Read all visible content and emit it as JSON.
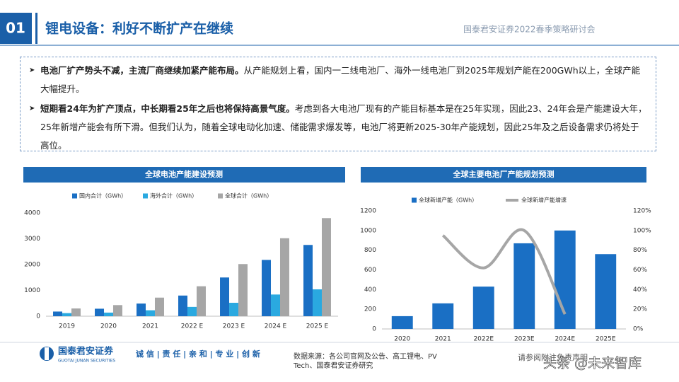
{
  "header": {
    "number": "01",
    "title": "锂电设备：利好不断扩产在继续",
    "org": "国泰君安证券2022春季策略研讨会"
  },
  "bullets": [
    {
      "bold": "电池厂扩产势头不减，主流厂商继续加紧产能布局。",
      "text": "从产能规划上看，国内一二线电池厂、海外一线电池厂到2025年规划产能在200GWh以上，全球产能大幅提升。"
    },
    {
      "bold": "短期看24年为扩产顶点，中长期看25年之后也将保持高景气度。",
      "text": "考虑到各大电池厂现有的产能目标基本是在25年实现，因此23、24年会是产能建设大年，25年新增产能会有所下滑。但我们认为，随着全球电动化加速、储能需求爆发等，电池厂将更新2025-30年产能规划，因此25年及之后设备需求仍将处于高位。"
    }
  ],
  "chart_data": [
    {
      "type": "bar",
      "title": "全球电池产能建设预测",
      "categories": [
        "2019",
        "2020",
        "2021",
        "2022 E",
        "2023 E",
        "2024 E",
        "2025 E"
      ],
      "series": [
        {
          "name": "国内合计（GWh）",
          "color": "#1a6fc4",
          "values": [
            180,
            290,
            490,
            800,
            1500,
            2180,
            2760
          ]
        },
        {
          "name": "海外合计（GWh）",
          "color": "#2aa9e0",
          "values": [
            120,
            140,
            230,
            360,
            520,
            840,
            1040
          ]
        },
        {
          "name": "全球合计（GWh）",
          "color": "#a6a6a6",
          "values": [
            300,
            430,
            720,
            1160,
            2020,
            3020,
            3800
          ]
        }
      ],
      "ylim": [
        0,
        4000
      ],
      "yticks": [
        0,
        1000,
        2000,
        3000,
        4000
      ]
    },
    {
      "type": "combo",
      "title": "全球主要电池厂产能规划预测",
      "categories": [
        "2020",
        "2021",
        "2022E",
        "2023E",
        "2024E",
        "2025E"
      ],
      "series": [
        {
          "name": "全球新增产能（GWh）",
          "type": "bar",
          "color": "#1a6fc4",
          "values": [
            130,
            260,
            430,
            870,
            1000,
            760
          ]
        },
        {
          "name": "全球新增产能增速",
          "type": "line",
          "axis": "y2",
          "color": "#a6a6a6",
          "values": [
            null,
            95,
            62,
            100,
            15,
            null
          ]
        }
      ],
      "ylim": [
        0,
        1200
      ],
      "yticks": [
        0,
        200,
        400,
        600,
        800,
        1000,
        1200
      ],
      "y2lim": [
        0,
        120
      ],
      "y2ticks": [
        {
          "value": 0,
          "label": "0%"
        },
        {
          "value": 20,
          "label": "20%"
        },
        {
          "value": 40,
          "label": "40%"
        },
        {
          "value": 60,
          "label": "60%"
        },
        {
          "value": 80,
          "label": "80%"
        },
        {
          "value": 100,
          "label": "100%"
        },
        {
          "value": 120,
          "label": "120%"
        }
      ]
    }
  ],
  "footer": {
    "logo": "国泰君安证券",
    "logo_en": "GUOTAI JUNAN SECURITIES",
    "motto": "诚 信 | 责 任 | 亲 和 | 专 业 | 创 新",
    "source": "数据来源：各公司官网及公告、高工锂电、PV Tech、国泰君安证券研究",
    "disclaimer": "请参阅附注免责声明",
    "watermark": "头条 @未来智库"
  }
}
